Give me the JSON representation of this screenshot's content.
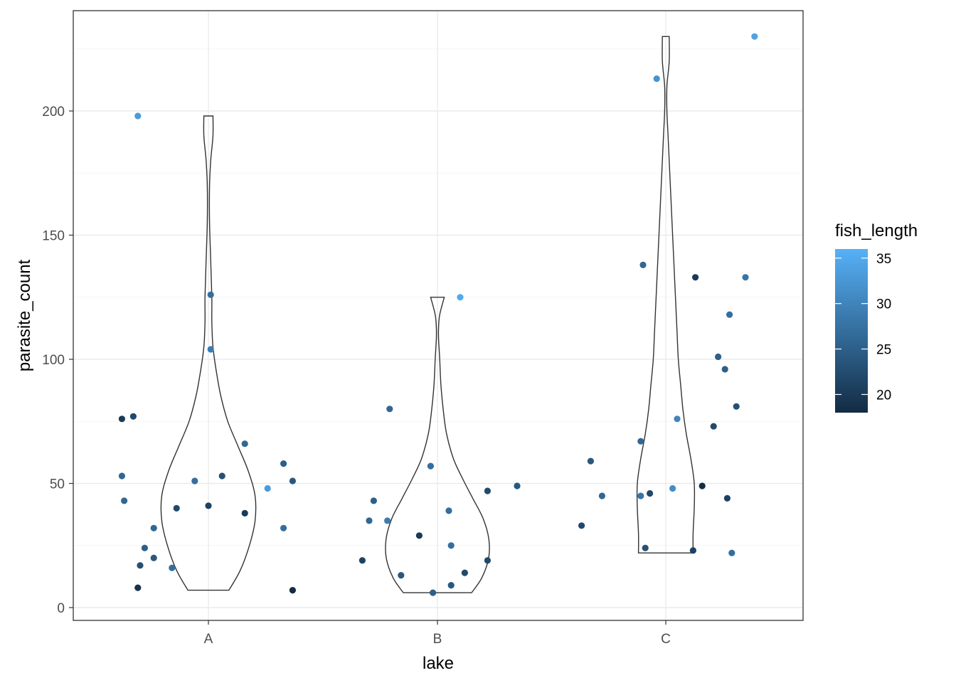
{
  "chart_data": {
    "type": "scatter",
    "geoms": [
      "violin",
      "jitter"
    ],
    "xlabel": "lake",
    "ylabel": "parasite_count",
    "categories": [
      "A",
      "B",
      "C"
    ],
    "ylim": [
      -6,
      239
    ],
    "yticks": [
      0,
      50,
      100,
      150,
      200
    ],
    "grid": true,
    "theme": "bw",
    "legend": {
      "title": "fish_length",
      "placement": "right",
      "type": "colorbar",
      "range": [
        18,
        36
      ],
      "ticks": [
        20,
        25,
        30,
        35
      ],
      "low_color": "#132B43",
      "high_color": "#56B1F7"
    },
    "violins": [
      {
        "group": "A",
        "ymin": 7,
        "ymax": 198,
        "profile": [
          [
            7,
            0.18
          ],
          [
            15,
            0.28
          ],
          [
            25,
            0.36
          ],
          [
            35,
            0.41
          ],
          [
            45,
            0.41
          ],
          [
            55,
            0.35
          ],
          [
            65,
            0.26
          ],
          [
            75,
            0.17
          ],
          [
            85,
            0.11
          ],
          [
            95,
            0.07
          ],
          [
            105,
            0.04
          ],
          [
            115,
            0.03
          ],
          [
            125,
            0.03
          ],
          [
            140,
            0.02
          ],
          [
            155,
            0.01
          ],
          [
            170,
            0.01
          ],
          [
            180,
            0.02
          ],
          [
            190,
            0.04
          ],
          [
            198,
            0.04
          ]
        ]
      },
      {
        "group": "B",
        "ymin": 6,
        "ymax": 125,
        "profile": [
          [
            6,
            0.3
          ],
          [
            12,
            0.39
          ],
          [
            20,
            0.45
          ],
          [
            28,
            0.45
          ],
          [
            36,
            0.4
          ],
          [
            44,
            0.31
          ],
          [
            52,
            0.22
          ],
          [
            60,
            0.14
          ],
          [
            70,
            0.08
          ],
          [
            80,
            0.05
          ],
          [
            90,
            0.03
          ],
          [
            100,
            0.02
          ],
          [
            108,
            0.01
          ],
          [
            113,
            0.01
          ],
          [
            118,
            0.02
          ],
          [
            125,
            0.06
          ]
        ]
      },
      {
        "group": "C",
        "ymin": 22,
        "ymax": 230,
        "profile": [
          [
            22,
            0.24
          ],
          [
            30,
            0.24
          ],
          [
            40,
            0.25
          ],
          [
            50,
            0.25
          ],
          [
            60,
            0.22
          ],
          [
            70,
            0.18
          ],
          [
            80,
            0.15
          ],
          [
            90,
            0.13
          ],
          [
            100,
            0.11
          ],
          [
            110,
            0.1
          ],
          [
            120,
            0.09
          ],
          [
            130,
            0.08
          ],
          [
            140,
            0.07
          ],
          [
            150,
            0.06
          ],
          [
            160,
            0.05
          ],
          [
            170,
            0.04
          ],
          [
            180,
            0.03
          ],
          [
            190,
            0.02
          ],
          [
            200,
            0.01
          ],
          [
            210,
            0.01
          ],
          [
            220,
            0.03
          ],
          [
            230,
            0.03
          ]
        ]
      }
    ],
    "points": [
      {
        "group": "A",
        "x_offset": -0.38,
        "y": 76,
        "fish_length": 20
      },
      {
        "group": "A",
        "x_offset": -0.33,
        "y": 77,
        "fish_length": 22
      },
      {
        "group": "A",
        "x_offset": -0.38,
        "y": 53,
        "fish_length": 26
      },
      {
        "group": "A",
        "x_offset": -0.37,
        "y": 43,
        "fish_length": 26
      },
      {
        "group": "A",
        "x_offset": -0.28,
        "y": 24,
        "fish_length": 25
      },
      {
        "group": "A",
        "x_offset": -0.3,
        "y": 17,
        "fish_length": 23
      },
      {
        "group": "A",
        "x_offset": -0.31,
        "y": 8,
        "fish_length": 19
      },
      {
        "group": "A",
        "x_offset": -0.24,
        "y": 32,
        "fish_length": 26
      },
      {
        "group": "A",
        "x_offset": -0.24,
        "y": 20,
        "fish_length": 24
      },
      {
        "group": "A",
        "x_offset": -0.16,
        "y": 16,
        "fish_length": 27
      },
      {
        "group": "A",
        "x_offset": -0.14,
        "y": 40,
        "fish_length": 22
      },
      {
        "group": "A",
        "x_offset": -0.06,
        "y": 51,
        "fish_length": 27
      },
      {
        "group": "A",
        "x_offset": 0.0,
        "y": 41,
        "fish_length": 21
      },
      {
        "group": "A",
        "x_offset": 0.01,
        "y": 126,
        "fish_length": 27
      },
      {
        "group": "A",
        "x_offset": 0.01,
        "y": 104,
        "fish_length": 29
      },
      {
        "group": "A",
        "x_offset": 0.06,
        "y": 53,
        "fish_length": 23
      },
      {
        "group": "A",
        "x_offset": 0.16,
        "y": 66,
        "fish_length": 26
      },
      {
        "group": "A",
        "x_offset": 0.16,
        "y": 38,
        "fish_length": 20
      },
      {
        "group": "A",
        "x_offset": 0.26,
        "y": 48,
        "fish_length": 33
      },
      {
        "group": "A",
        "x_offset": 0.33,
        "y": 58,
        "fish_length": 25
      },
      {
        "group": "A",
        "x_offset": 0.37,
        "y": 51,
        "fish_length": 24
      },
      {
        "group": "A",
        "x_offset": 0.33,
        "y": 32,
        "fish_length": 27
      },
      {
        "group": "A",
        "x_offset": 0.37,
        "y": 7,
        "fish_length": 18
      },
      {
        "group": "A",
        "x_offset": -0.31,
        "y": 198,
        "fish_length": 33
      },
      {
        "group": "B",
        "x_offset": -0.33,
        "y": 19,
        "fish_length": 21
      },
      {
        "group": "B",
        "x_offset": -0.3,
        "y": 35,
        "fish_length": 26
      },
      {
        "group": "B",
        "x_offset": -0.28,
        "y": 43,
        "fish_length": 25
      },
      {
        "group": "B",
        "x_offset": -0.22,
        "y": 35,
        "fish_length": 29
      },
      {
        "group": "B",
        "x_offset": -0.21,
        "y": 80,
        "fish_length": 26
      },
      {
        "group": "B",
        "x_offset": -0.16,
        "y": 13,
        "fish_length": 24
      },
      {
        "group": "B",
        "x_offset": -0.08,
        "y": 29,
        "fish_length": 20
      },
      {
        "group": "B",
        "x_offset": -0.03,
        "y": 57,
        "fish_length": 27
      },
      {
        "group": "B",
        "x_offset": -0.02,
        "y": 6,
        "fish_length": 25
      },
      {
        "group": "B",
        "x_offset": 0.05,
        "y": 39,
        "fish_length": 27
      },
      {
        "group": "B",
        "x_offset": 0.06,
        "y": 25,
        "fish_length": 27
      },
      {
        "group": "B",
        "x_offset": 0.06,
        "y": 9,
        "fish_length": 24
      },
      {
        "group": "B",
        "x_offset": 0.1,
        "y": 125,
        "fish_length": 35
      },
      {
        "group": "B",
        "x_offset": 0.12,
        "y": 14,
        "fish_length": 22
      },
      {
        "group": "B",
        "x_offset": 0.22,
        "y": 47,
        "fish_length": 22
      },
      {
        "group": "B",
        "x_offset": 0.22,
        "y": 19,
        "fish_length": 22
      },
      {
        "group": "B",
        "x_offset": 0.35,
        "y": 49,
        "fish_length": 24
      },
      {
        "group": "C",
        "x_offset": -0.37,
        "y": 33,
        "fish_length": 22
      },
      {
        "group": "C",
        "x_offset": -0.33,
        "y": 59,
        "fish_length": 24
      },
      {
        "group": "C",
        "x_offset": -0.28,
        "y": 45,
        "fish_length": 26
      },
      {
        "group": "C",
        "x_offset": -0.11,
        "y": 67,
        "fish_length": 26
      },
      {
        "group": "C",
        "x_offset": -0.11,
        "y": 45,
        "fish_length": 28
      },
      {
        "group": "C",
        "x_offset": -0.1,
        "y": 138,
        "fish_length": 26
      },
      {
        "group": "C",
        "x_offset": -0.09,
        "y": 24,
        "fish_length": 23
      },
      {
        "group": "C",
        "x_offset": -0.07,
        "y": 46,
        "fish_length": 22
      },
      {
        "group": "C",
        "x_offset": -0.04,
        "y": 213,
        "fish_length": 32
      },
      {
        "group": "C",
        "x_offset": 0.03,
        "y": 48,
        "fish_length": 31
      },
      {
        "group": "C",
        "x_offset": 0.05,
        "y": 76,
        "fish_length": 30
      },
      {
        "group": "C",
        "x_offset": 0.12,
        "y": 23,
        "fish_length": 21
      },
      {
        "group": "C",
        "x_offset": 0.13,
        "y": 133,
        "fish_length": 20
      },
      {
        "group": "C",
        "x_offset": 0.16,
        "y": 49,
        "fish_length": 18
      },
      {
        "group": "C",
        "x_offset": 0.21,
        "y": 73,
        "fish_length": 22
      },
      {
        "group": "C",
        "x_offset": 0.23,
        "y": 101,
        "fish_length": 25
      },
      {
        "group": "C",
        "x_offset": 0.26,
        "y": 96,
        "fish_length": 25
      },
      {
        "group": "C",
        "x_offset": 0.27,
        "y": 44,
        "fish_length": 21
      },
      {
        "group": "C",
        "x_offset": 0.28,
        "y": 118,
        "fish_length": 27
      },
      {
        "group": "C",
        "x_offset": 0.29,
        "y": 22,
        "fish_length": 27
      },
      {
        "group": "C",
        "x_offset": 0.31,
        "y": 81,
        "fish_length": 23
      },
      {
        "group": "C",
        "x_offset": 0.35,
        "y": 133,
        "fish_length": 28
      },
      {
        "group": "C",
        "x_offset": 0.39,
        "y": 230,
        "fish_length": 34
      }
    ]
  }
}
